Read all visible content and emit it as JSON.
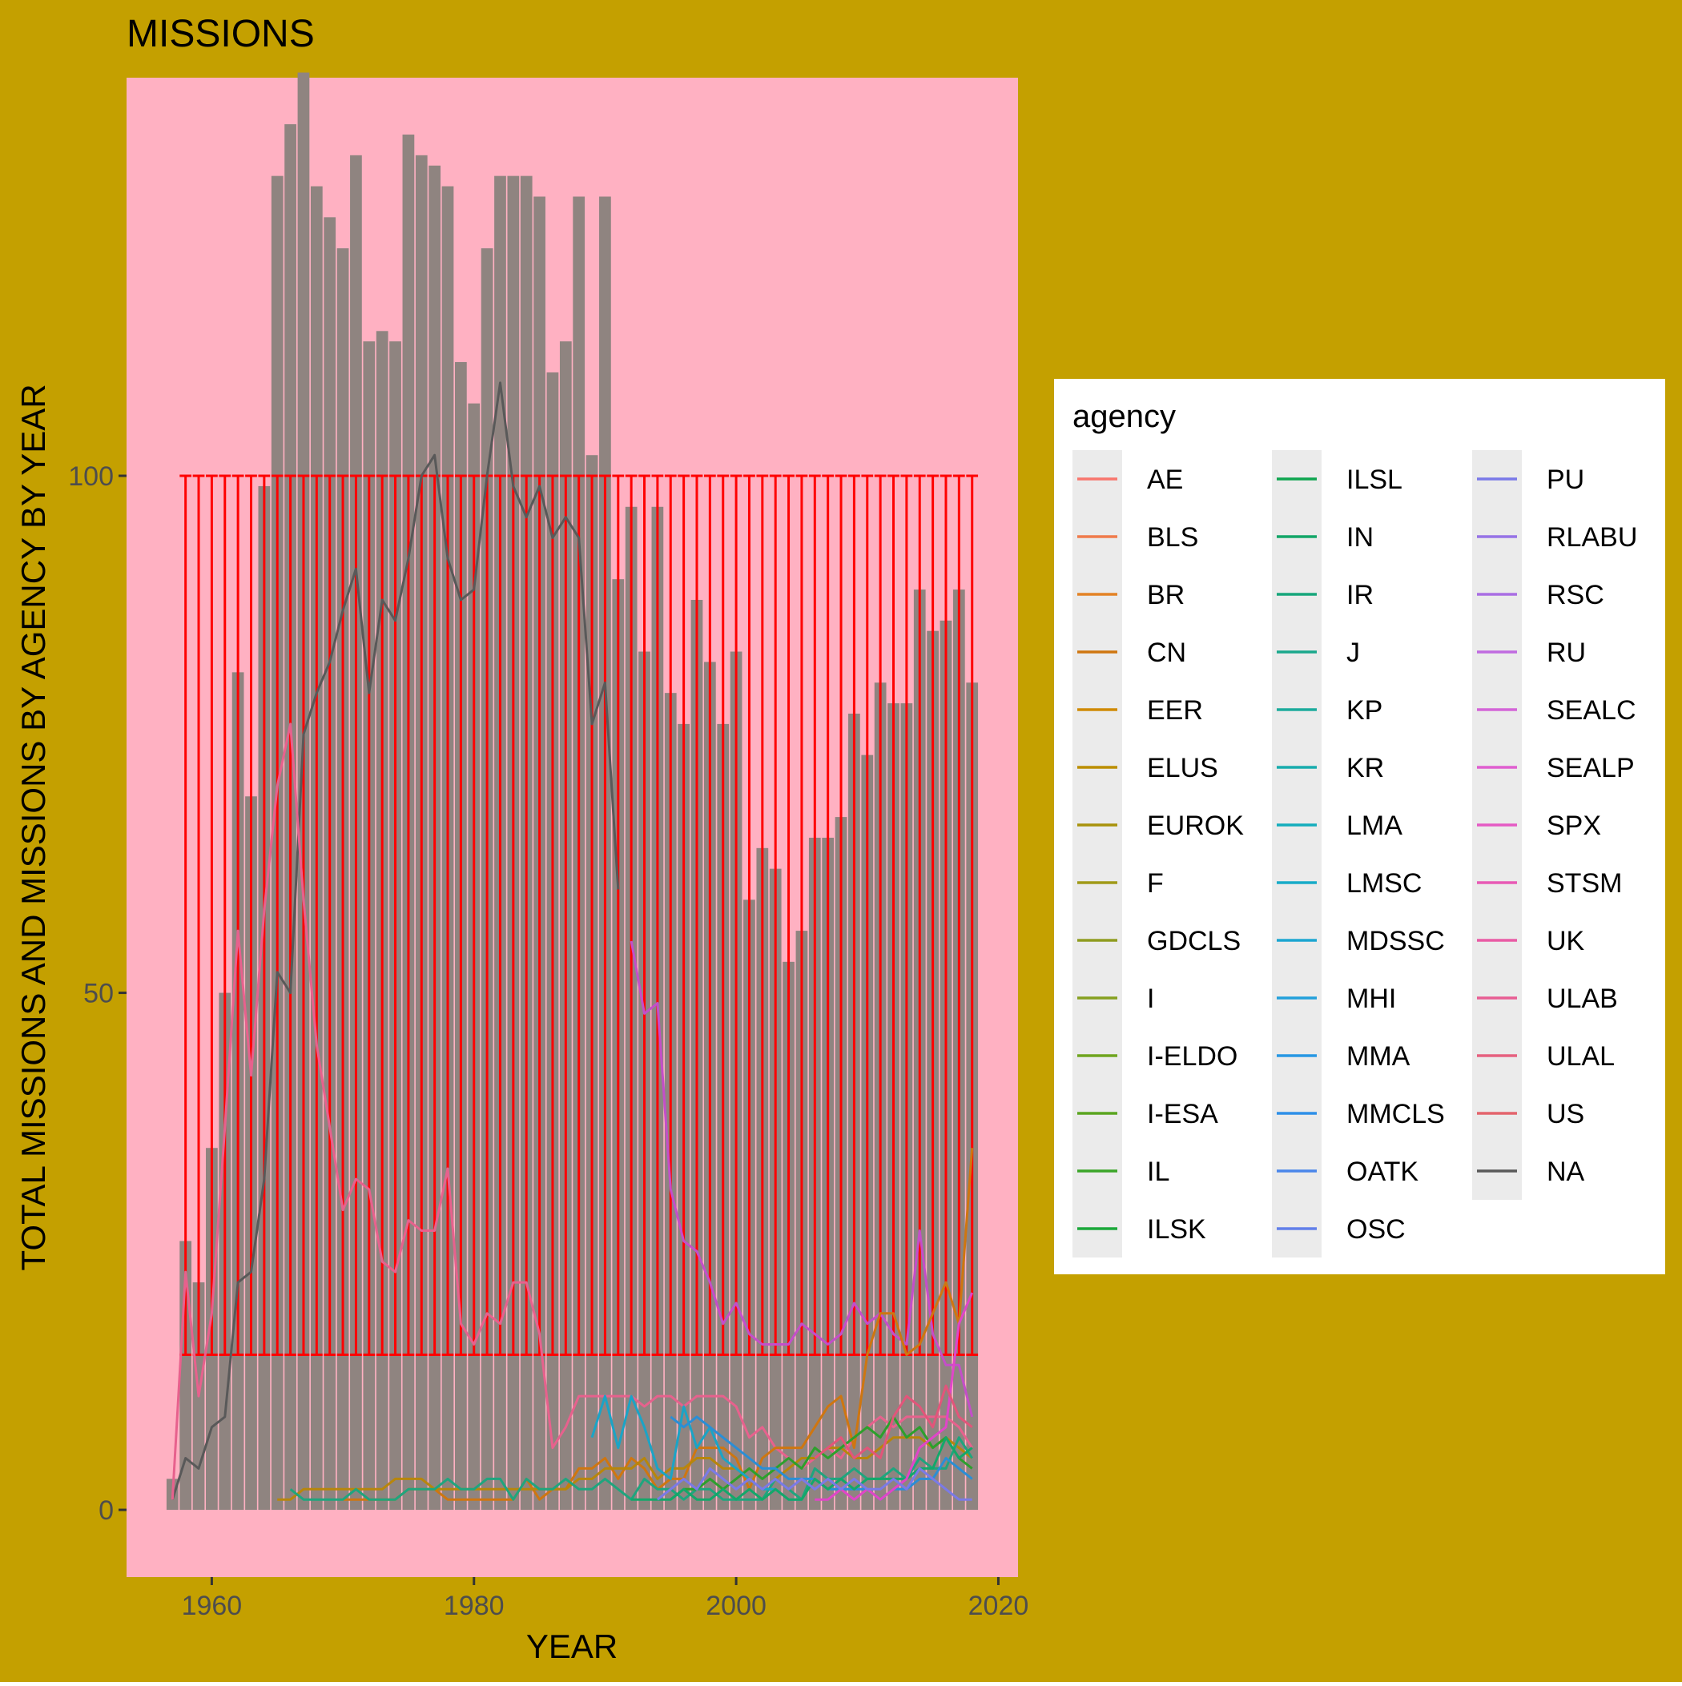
{
  "colors": {
    "figure_background": "#c4a000",
    "panel_background": "#ffb1c2",
    "bar_fill": "#8f8480",
    "errorbar": "#ff0000",
    "na_line": "#595959",
    "legend_key_bg": "#ebebeb",
    "text": "#000000",
    "tick_text": "#4d4d4d"
  },
  "chart_data": {
    "type": "bar",
    "title": "MISSIONS",
    "xlabel": "YEAR",
    "ylabel": "TOTAL MISSIONS AND MISSIONS BY AGENCY BY YEAR",
    "xlim": [
      1953.5,
      2021.5
    ],
    "ylim": [
      -6.5,
      138.5
    ],
    "x_ticks": [
      1960,
      1980,
      2000,
      2020
    ],
    "y_ticks": [
      0,
      50,
      100
    ],
    "x_tick_labels": [
      "1960",
      "1980",
      "2000",
      "2020"
    ],
    "y_tick_labels": [
      "0",
      "50",
      "100"
    ],
    "grid": false,
    "legend_position": "right",
    "legend_title": "agency",
    "bars": {
      "x": [
        1957,
        1958,
        1959,
        1960,
        1961,
        1962,
        1963,
        1964,
        1965,
        1966,
        1967,
        1968,
        1969,
        1970,
        1971,
        1972,
        1973,
        1974,
        1975,
        1976,
        1977,
        1978,
        1979,
        1980,
        1981,
        1982,
        1983,
        1984,
        1985,
        1986,
        1987,
        1988,
        1989,
        1990,
        1991,
        1992,
        1993,
        1994,
        1995,
        1996,
        1997,
        1998,
        1999,
        2000,
        2001,
        2002,
        2003,
        2004,
        2005,
        2006,
        2007,
        2008,
        2009,
        2010,
        2011,
        2012,
        2013,
        2014,
        2015,
        2016,
        2017,
        2018
      ],
      "values": [
        3,
        26,
        22,
        35,
        50,
        81,
        69,
        99,
        129,
        134,
        139,
        128,
        125,
        122,
        131,
        113,
        114,
        113,
        133,
        131,
        130,
        128,
        111,
        107,
        122,
        129,
        129,
        129,
        127,
        110,
        113,
        127,
        102,
        127,
        90,
        97,
        83,
        97,
        79,
        76,
        88,
        82,
        76,
        83,
        59,
        64,
        62,
        53,
        56,
        65,
        65,
        67,
        77,
        73,
        80,
        78,
        78,
        89,
        85,
        86,
        89,
        80
      ]
    },
    "errorbars": {
      "x_start": 1958,
      "x_end": 2018,
      "step": 1,
      "ymin": 15,
      "ymax": 100
    },
    "series": [
      {
        "name": "NA",
        "color": "#595959",
        "x": [
          1957,
          1958,
          1959,
          1960,
          1961,
          1962,
          1963,
          1964,
          1965,
          1966,
          1967,
          1968,
          1969,
          1970,
          1971,
          1972,
          1973,
          1974,
          1975,
          1976,
          1977,
          1978,
          1979,
          1980,
          1981,
          1982,
          1983,
          1984,
          1985,
          1986,
          1987,
          1988,
          1989,
          1990,
          1991
        ],
        "values": [
          1,
          5,
          4,
          8,
          9,
          22,
          23,
          32,
          52,
          50,
          75,
          79,
          82,
          87,
          91,
          79,
          88,
          86,
          92,
          100,
          102,
          92,
          88,
          89,
          100,
          109,
          99,
          96,
          99,
          94,
          96,
          94,
          76,
          80,
          60
        ]
      },
      {
        "name": "US",
        "color": "#e7618d",
        "x": [
          1957,
          1958,
          1959,
          1960,
          1961,
          1962,
          1963,
          1964,
          1965,
          1966,
          1967,
          1968,
          1969,
          1970,
          1971,
          1972,
          1973,
          1974,
          1975,
          1976,
          1977,
          1978,
          1979,
          1980,
          1981,
          1982,
          1983,
          1984,
          1985,
          1986,
          1987,
          1988,
          1989,
          1990,
          1991,
          1992,
          1993,
          1994,
          1995,
          1996,
          1997,
          1998,
          1999,
          2000,
          2001,
          2002,
          2003,
          2004,
          2005,
          2006,
          2007,
          2008,
          2009,
          2010,
          2011,
          2012,
          2013,
          2014,
          2015,
          2016,
          2017,
          2018
        ],
        "values": [
          1,
          23,
          11,
          19,
          37,
          56,
          42,
          58,
          70,
          76,
          59,
          45,
          37,
          29,
          32,
          31,
          24,
          23,
          28,
          27,
          27,
          33,
          18,
          16,
          19,
          18,
          22,
          22,
          17,
          6,
          8,
          11,
          11,
          11,
          11,
          11,
          10,
          11,
          11,
          10,
          11,
          11,
          11,
          10,
          7,
          8,
          6,
          5,
          4,
          5,
          6,
          5,
          7,
          8,
          9,
          8,
          9,
          9,
          9,
          9,
          8,
          6
        ]
      },
      {
        "name": "RU",
        "color": "#c44ec9",
        "x": [
          1992,
          1993,
          1994,
          1995,
          1996,
          1997,
          1998,
          1999,
          2000,
          2001,
          2002,
          2003,
          2004,
          2005,
          2006,
          2007,
          2008,
          2009,
          2010,
          2011,
          2012,
          2013,
          2014,
          2015,
          2016,
          2017,
          2018
        ],
        "values": [
          55,
          48,
          49,
          31,
          26,
          25,
          22,
          18,
          20,
          17,
          16,
          16,
          16,
          18,
          17,
          16,
          17,
          20,
          18,
          19,
          17,
          16,
          27,
          17,
          14,
          14,
          9
        ]
      },
      {
        "name": "CN",
        "color": "#cf7610",
        "x": [
          1970,
          1971,
          1972,
          1973,
          1974,
          1975,
          1976,
          1977,
          1978,
          1979,
          1980,
          1981,
          1982,
          1983,
          1984,
          1985,
          1986,
          1987,
          1988,
          1989,
          1990,
          1991,
          1992,
          1993,
          1994,
          1995,
          1996,
          1997,
          1998,
          1999,
          2000,
          2001,
          2002,
          2003,
          2004,
          2005,
          2006,
          2007,
          2008,
          2009,
          2010,
          2011,
          2012,
          2013,
          2014,
          2015,
          2016,
          2017,
          2018
        ],
        "values": [
          1,
          1,
          1,
          1,
          1,
          2,
          2,
          2,
          1,
          1,
          1,
          1,
          1,
          1,
          3,
          1,
          2,
          2,
          4,
          4,
          5,
          3,
          5,
          4,
          2,
          3,
          3,
          6,
          6,
          6,
          5,
          2,
          5,
          6,
          6,
          6,
          8,
          10,
          11,
          6,
          15,
          19,
          19,
          15,
          16,
          19,
          22,
          18,
          35
        ]
      },
      {
        "name": "ELUS",
        "color": "#b8860b",
        "x": [
          1965,
          1966,
          1967,
          1968,
          1969,
          1970,
          1971,
          1972,
          1973,
          1974,
          1975,
          1976,
          1977,
          1978,
          1979,
          1980,
          1981,
          1982,
          1983,
          1984,
          1985,
          1986,
          1987,
          1988,
          1989,
          1990,
          1991,
          1992,
          1993,
          1994,
          1995,
          1996,
          1997,
          1998,
          1999,
          2000,
          2001,
          2002,
          2003,
          2004,
          2005,
          2006,
          2007,
          2008,
          2009,
          2010,
          2011,
          2012,
          2013,
          2014,
          2015,
          2016,
          2017,
          2018
        ],
        "values": [
          1,
          1,
          2,
          2,
          2,
          2,
          2,
          2,
          2,
          3,
          3,
          3,
          2,
          2,
          2,
          2,
          2,
          2,
          2,
          2,
          2,
          2,
          2,
          3,
          3,
          4,
          4,
          4,
          5,
          3,
          4,
          4,
          5,
          5,
          4,
          4,
          3,
          2,
          3,
          4,
          5,
          5,
          6,
          6,
          5,
          5,
          6,
          7,
          7,
          7,
          6,
          7,
          6,
          5
        ]
      },
      {
        "name": "J",
        "color": "#1fa57e",
        "x": [
          1966,
          1967,
          1968,
          1969,
          1970,
          1971,
          1972,
          1973,
          1974,
          1975,
          1976,
          1977,
          1978,
          1979,
          1980,
          1981,
          1982,
          1983,
          1984,
          1985,
          1986,
          1987,
          1988,
          1989,
          1990,
          1991,
          1992,
          1993,
          1994,
          1995,
          1996,
          1997,
          1998,
          1999,
          2000,
          2001,
          2002,
          2003,
          2004,
          2005,
          2006,
          2007,
          2008,
          2009,
          2010,
          2011,
          2012,
          2013,
          2014,
          2015,
          2016,
          2017,
          2018
        ],
        "values": [
          2,
          1,
          1,
          1,
          1,
          2,
          1,
          1,
          1,
          2,
          2,
          2,
          3,
          2,
          2,
          3,
          3,
          1,
          3,
          2,
          2,
          3,
          2,
          2,
          3,
          2,
          1,
          3,
          2,
          2,
          1,
          2,
          2,
          1,
          1,
          1,
          1,
          3,
          2,
          1,
          4,
          3,
          3,
          4,
          3,
          3,
          4,
          3,
          5,
          4,
          4,
          7,
          5
        ]
      },
      {
        "name": "IL",
        "color": "#2ca02c",
        "x": [
          1995,
          1996,
          1997,
          1998,
          1999,
          2000,
          2001,
          2002,
          2003,
          2004,
          2005,
          2006,
          2007,
          2008,
          2009,
          2010,
          2011,
          2012,
          2013,
          2014,
          2015,
          2016,
          2017,
          2018
        ],
        "values": [
          1,
          2,
          2,
          3,
          2,
          3,
          4,
          3,
          4,
          5,
          4,
          6,
          5,
          6,
          7,
          8,
          7,
          9,
          7,
          8,
          6,
          7,
          5,
          4
        ]
      },
      {
        "name": "LMSC",
        "color": "#1ba4c6",
        "x": [
          1989,
          1990,
          1991,
          1992,
          1993,
          1994,
          1995,
          1996,
          1997,
          1998,
          1999,
          2000,
          2001,
          2002,
          2003,
          2004,
          2005
        ],
        "values": [
          7,
          11,
          6,
          11,
          8,
          4,
          3,
          10,
          6,
          8,
          5,
          4,
          3,
          2,
          2,
          1,
          1
        ]
      },
      {
        "name": "MMCLS",
        "color": "#2a8ed6",
        "x": [
          1995,
          1996,
          1997,
          1998,
          1999,
          2000,
          2001,
          2002,
          2003,
          2004,
          2005,
          2006,
          2007,
          2008,
          2009,
          2010,
          2011,
          2012,
          2013,
          2014,
          2015,
          2016,
          2017,
          2018
        ],
        "values": [
          9,
          8,
          9,
          8,
          7,
          6,
          5,
          4,
          4,
          3,
          3,
          3,
          2,
          2,
          2,
          2,
          1,
          2,
          2,
          3,
          3,
          5,
          4,
          3
        ]
      },
      {
        "name": "IN",
        "color": "#13a86a",
        "x": [
          1992,
          1993,
          1994,
          1995,
          1996,
          1997,
          1998,
          1999,
          2000,
          2001,
          2002,
          2003,
          2004,
          2005,
          2006,
          2007,
          2008,
          2009,
          2010,
          2011,
          2012,
          2013,
          2014,
          2015,
          2016,
          2017,
          2018
        ],
        "values": [
          1,
          1,
          1,
          1,
          2,
          1,
          1,
          2,
          1,
          2,
          1,
          2,
          1,
          1,
          3,
          2,
          3,
          2,
          3,
          3,
          3,
          3,
          4,
          4,
          7,
          5,
          6
        ]
      },
      {
        "name": "SPX",
        "color": "#e045c8",
        "x": [
          2006,
          2007,
          2008,
          2009,
          2010,
          2011,
          2012,
          2013,
          2014,
          2015,
          2016,
          2017,
          2018
        ],
        "values": [
          1,
          1,
          2,
          1,
          2,
          1,
          2,
          3,
          6,
          7,
          8,
          18,
          21
        ]
      },
      {
        "name": "ULAL",
        "color": "#e2557a",
        "x": [
          2006,
          2007,
          2008,
          2009,
          2010,
          2011,
          2012,
          2013,
          2014,
          2015,
          2016,
          2017,
          2018
        ],
        "values": [
          5,
          6,
          7,
          5,
          6,
          5,
          9,
          11,
          10,
          8,
          12,
          9,
          8
        ]
      },
      {
        "name": "PU",
        "color": "#7a7ae6",
        "x": [
          1994,
          1995,
          1996,
          1997,
          1998,
          1999,
          2000,
          2001,
          2002,
          2003,
          2004,
          2005,
          2006,
          2007,
          2008,
          2009,
          2010,
          2011,
          2012,
          2013,
          2014,
          2015,
          2016,
          2017,
          2018
        ],
        "values": [
          1,
          2,
          3,
          2,
          4,
          3,
          2,
          3,
          2,
          3,
          2,
          3,
          2,
          3,
          2,
          3,
          2,
          2,
          3,
          2,
          4,
          3,
          2,
          1,
          1
        ]
      }
    ],
    "legend_entries": [
      {
        "name": "AE",
        "color": "#f8766d"
      },
      {
        "name": "BLS",
        "color": "#f07b4b"
      },
      {
        "name": "BR",
        "color": "#e38225"
      },
      {
        "name": "CN",
        "color": "#cf7610"
      },
      {
        "name": "EER",
        "color": "#d08a05"
      },
      {
        "name": "ELUS",
        "color": "#bb8e00"
      },
      {
        "name": "EUROK",
        "color": "#a8920b"
      },
      {
        "name": "F",
        "color": "#a09a18"
      },
      {
        "name": "GDCLS",
        "color": "#8f9c20"
      },
      {
        "name": "I",
        "color": "#86a01f"
      },
      {
        "name": "I-ELDO",
        "color": "#6fa51e"
      },
      {
        "name": "I-ESA",
        "color": "#5aa51f"
      },
      {
        "name": "IL",
        "color": "#3ba528"
      },
      {
        "name": "ILSK",
        "color": "#1aa83a"
      },
      {
        "name": "ILSL",
        "color": "#0ea54f"
      },
      {
        "name": "IN",
        "color": "#12a668"
      },
      {
        "name": "IR",
        "color": "#16a67b"
      },
      {
        "name": "J",
        "color": "#1aa88c"
      },
      {
        "name": "KP",
        "color": "#1cab9c"
      },
      {
        "name": "KR",
        "color": "#18acad"
      },
      {
        "name": "LMA",
        "color": "#14adbc"
      },
      {
        "name": "LMSC",
        "color": "#17abc8"
      },
      {
        "name": "MDSSC",
        "color": "#1ca6d1"
      },
      {
        "name": "MHI",
        "color": "#22a0db"
      },
      {
        "name": "MMA",
        "color": "#2797e3"
      },
      {
        "name": "MMCLS",
        "color": "#2e8fe8"
      },
      {
        "name": "OATK",
        "color": "#4a86ea"
      },
      {
        "name": "OSC",
        "color": "#627fe9"
      },
      {
        "name": "PU",
        "color": "#7a79e8"
      },
      {
        "name": "RLABU",
        "color": "#9673e6"
      },
      {
        "name": "RSC",
        "color": "#a96ee3"
      },
      {
        "name": "RU",
        "color": "#c06be0"
      },
      {
        "name": "SEALC",
        "color": "#d465d8"
      },
      {
        "name": "SEALP",
        "color": "#df5ed0"
      },
      {
        "name": "SPX",
        "color": "#e55ac4"
      },
      {
        "name": "STSM",
        "color": "#e85ab5"
      },
      {
        "name": "UK",
        "color": "#e95ba5"
      },
      {
        "name": "ULAB",
        "color": "#e85d93"
      },
      {
        "name": "ULAL",
        "color": "#e6617f"
      },
      {
        "name": "US",
        "color": "#e3646c"
      },
      {
        "name": "NA",
        "color": "#595959"
      }
    ]
  }
}
